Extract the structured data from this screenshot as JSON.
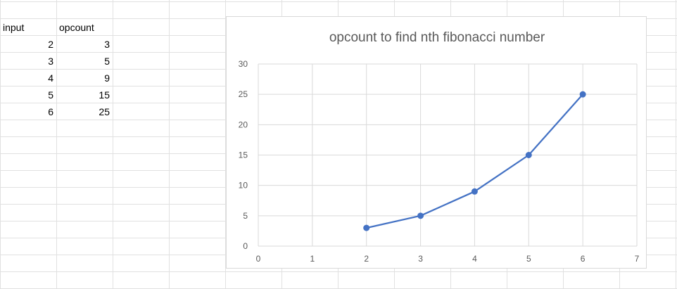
{
  "sheet": {
    "headers": {
      "col_a": "input",
      "col_b": "opcount"
    },
    "rows": [
      {
        "input": "2",
        "opcount": "3"
      },
      {
        "input": "3",
        "opcount": "5"
      },
      {
        "input": "4",
        "opcount": "9"
      },
      {
        "input": "5",
        "opcount": "15"
      },
      {
        "input": "6",
        "opcount": "25"
      }
    ],
    "gridline_color": "#e1e1e1"
  },
  "chart_data": {
    "type": "scatter",
    "title": "opcount to find nth fibonacci number",
    "xlabel": "",
    "ylabel": "",
    "xlim": [
      0,
      7
    ],
    "ylim": [
      0,
      30
    ],
    "x_ticks": [
      0,
      1,
      2,
      3,
      4,
      5,
      6,
      7
    ],
    "y_ticks": [
      0,
      5,
      10,
      15,
      20,
      25,
      30
    ],
    "grid": true,
    "legend": "none",
    "series": [
      {
        "x": [
          2,
          3,
          4,
          5,
          6
        ],
        "values": [
          3,
          5,
          9,
          15,
          25
        ],
        "color": "#4472c4",
        "lines": true,
        "markers": true
      }
    ]
  }
}
